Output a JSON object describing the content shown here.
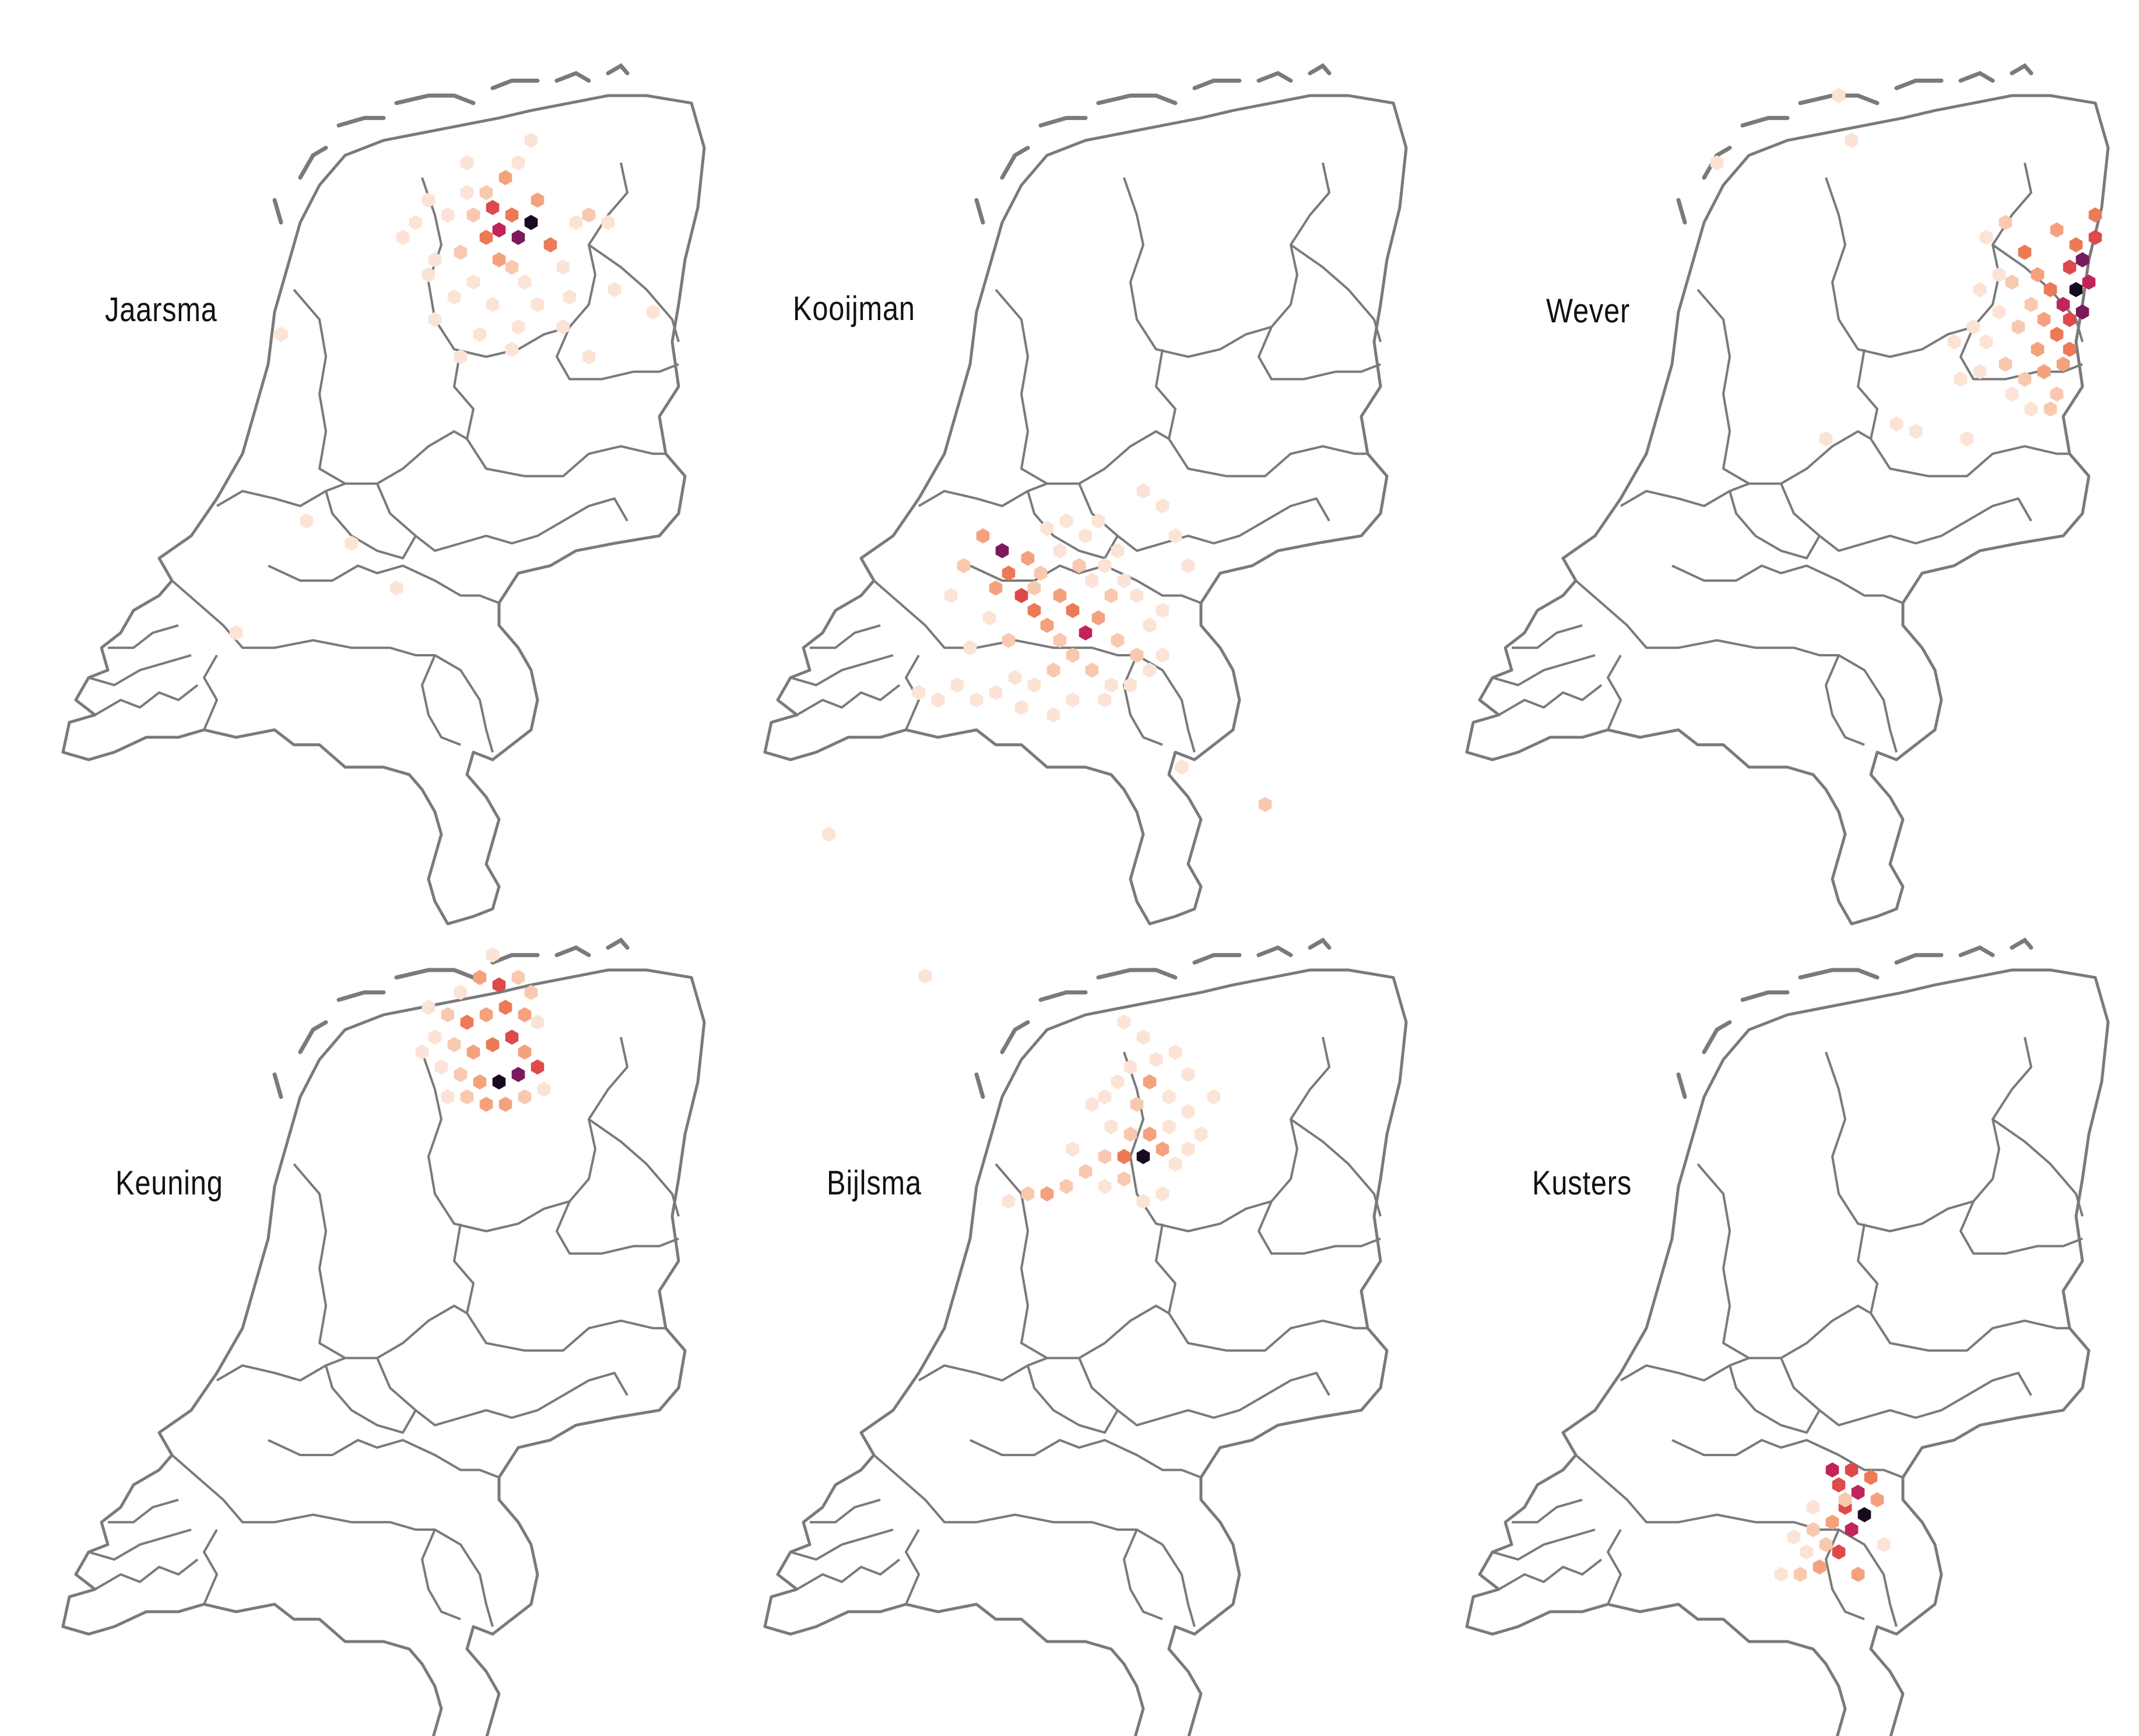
{
  "map": {
    "border_color": "#7a7a7a",
    "background": "#ffffff",
    "palette_low_to_high": [
      "#fbe3d6",
      "#f8c9ae",
      "#f4a27e",
      "#ec7a57",
      "#dd4a4c",
      "#c0245a",
      "#7a1a5c",
      "#190b1f"
    ]
  },
  "panels": [
    {
      "name": "Jaarsma",
      "cells": [
        [
          0.66,
          0.18,
          2
        ],
        [
          0.69,
          0.16,
          3
        ],
        [
          0.67,
          0.2,
          5
        ],
        [
          0.7,
          0.21,
          4
        ],
        [
          0.68,
          0.23,
          6
        ],
        [
          0.71,
          0.24,
          7
        ],
        [
          0.73,
          0.22,
          8
        ],
        [
          0.66,
          0.24,
          4
        ],
        [
          0.62,
          0.26,
          2
        ],
        [
          0.74,
          0.19,
          3
        ],
        [
          0.76,
          0.25,
          4
        ],
        [
          0.63,
          0.18,
          1
        ],
        [
          0.6,
          0.21,
          1
        ],
        [
          0.57,
          0.19,
          1
        ],
        [
          0.55,
          0.22,
          1
        ],
        [
          0.58,
          0.27,
          1
        ],
        [
          0.64,
          0.3,
          1
        ],
        [
          0.7,
          0.28,
          2
        ],
        [
          0.72,
          0.3,
          1
        ],
        [
          0.78,
          0.28,
          1
        ],
        [
          0.8,
          0.22,
          1
        ],
        [
          0.82,
          0.21,
          2
        ],
        [
          0.85,
          0.22,
          1
        ],
        [
          0.61,
          0.32,
          1
        ],
        [
          0.67,
          0.33,
          1
        ],
        [
          0.74,
          0.33,
          1
        ],
        [
          0.79,
          0.32,
          1
        ],
        [
          0.86,
          0.31,
          1
        ],
        [
          0.57,
          0.29,
          1
        ],
        [
          0.53,
          0.24,
          1
        ],
        [
          0.65,
          0.37,
          1
        ],
        [
          0.71,
          0.36,
          1
        ],
        [
          0.78,
          0.36,
          1
        ],
        [
          0.92,
          0.34,
          1
        ],
        [
          0.71,
          0.14,
          1
        ],
        [
          0.73,
          0.11,
          1
        ],
        [
          0.63,
          0.14,
          1
        ],
        [
          0.58,
          0.35,
          1
        ],
        [
          0.68,
          0.27,
          3
        ],
        [
          0.64,
          0.21,
          2
        ],
        [
          0.34,
          0.37,
          1
        ],
        [
          0.38,
          0.62,
          1
        ],
        [
          0.45,
          0.65,
          1
        ],
        [
          0.52,
          0.71,
          1
        ],
        [
          0.27,
          0.77,
          1
        ],
        [
          0.62,
          0.4,
          1
        ],
        [
          0.82,
          0.4,
          1
        ],
        [
          0.7,
          0.39,
          1
        ]
      ]
    },
    {
      "name": "Kooijman",
      "cells": [
        [
          0.34,
          0.64,
          3
        ],
        [
          0.37,
          0.66,
          7
        ],
        [
          0.38,
          0.69,
          4
        ],
        [
          0.36,
          0.71,
          3
        ],
        [
          0.4,
          0.72,
          5
        ],
        [
          0.42,
          0.74,
          4
        ],
        [
          0.44,
          0.76,
          3
        ],
        [
          0.41,
          0.67,
          3
        ],
        [
          0.43,
          0.69,
          2
        ],
        [
          0.46,
          0.72,
          3
        ],
        [
          0.48,
          0.74,
          4
        ],
        [
          0.5,
          0.77,
          6
        ],
        [
          0.52,
          0.75,
          3
        ],
        [
          0.54,
          0.72,
          2
        ],
        [
          0.46,
          0.66,
          1
        ],
        [
          0.49,
          0.68,
          2
        ],
        [
          0.51,
          0.7,
          1
        ],
        [
          0.53,
          0.68,
          1
        ],
        [
          0.55,
          0.66,
          1
        ],
        [
          0.5,
          0.64,
          1
        ],
        [
          0.47,
          0.62,
          1
        ],
        [
          0.52,
          0.62,
          1
        ],
        [
          0.56,
          0.7,
          1
        ],
        [
          0.58,
          0.72,
          1
        ],
        [
          0.55,
          0.78,
          2
        ],
        [
          0.58,
          0.8,
          2
        ],
        [
          0.6,
          0.76,
          1
        ],
        [
          0.62,
          0.74,
          1
        ],
        [
          0.48,
          0.8,
          2
        ],
        [
          0.45,
          0.82,
          2
        ],
        [
          0.42,
          0.84,
          1
        ],
        [
          0.39,
          0.83,
          1
        ],
        [
          0.36,
          0.85,
          1
        ],
        [
          0.33,
          0.86,
          1
        ],
        [
          0.3,
          0.84,
          1
        ],
        [
          0.27,
          0.86,
          1
        ],
        [
          0.24,
          0.85,
          1
        ],
        [
          0.51,
          0.82,
          2
        ],
        [
          0.54,
          0.84,
          1
        ],
        [
          0.57,
          0.84,
          1
        ],
        [
          0.6,
          0.82,
          1
        ],
        [
          0.31,
          0.68,
          2
        ],
        [
          0.29,
          0.72,
          1
        ],
        [
          0.35,
          0.75,
          1
        ],
        [
          0.38,
          0.78,
          2
        ],
        [
          0.32,
          0.79,
          1
        ],
        [
          0.4,
          0.87,
          1
        ],
        [
          0.45,
          0.88,
          1
        ],
        [
          0.48,
          0.86,
          1
        ],
        [
          0.64,
          0.64,
          1
        ],
        [
          0.66,
          0.68,
          1
        ],
        [
          0.62,
          0.6,
          1
        ],
        [
          0.59,
          0.58,
          1
        ],
        [
          0.42,
          0.71,
          2
        ],
        [
          0.46,
          0.78,
          2
        ],
        [
          0.53,
          0.86,
          1
        ],
        [
          0.62,
          0.8,
          1
        ],
        [
          0.78,
          1.0,
          2
        ],
        [
          0.1,
          1.04,
          1
        ],
        [
          0.25,
          1.23,
          1
        ],
        [
          0.65,
          0.95,
          1
        ],
        [
          0.44,
          0.63,
          1
        ]
      ]
    },
    {
      "name": "Wever",
      "cells": [
        [
          0.92,
          0.23,
          3
        ],
        [
          0.95,
          0.25,
          4
        ],
        [
          0.98,
          0.24,
          5
        ],
        [
          0.96,
          0.27,
          7
        ],
        [
          0.94,
          0.28,
          5
        ],
        [
          0.97,
          0.3,
          6
        ],
        [
          0.95,
          0.31,
          8
        ],
        [
          0.93,
          0.33,
          6
        ],
        [
          0.96,
          0.34,
          7
        ],
        [
          0.94,
          0.35,
          5
        ],
        [
          0.91,
          0.31,
          4
        ],
        [
          0.89,
          0.29,
          3
        ],
        [
          0.87,
          0.26,
          4
        ],
        [
          0.85,
          0.3,
          2
        ],
        [
          0.88,
          0.33,
          2
        ],
        [
          0.9,
          0.35,
          3
        ],
        [
          0.92,
          0.37,
          4
        ],
        [
          0.89,
          0.39,
          3
        ],
        [
          0.86,
          0.36,
          2
        ],
        [
          0.83,
          0.34,
          1
        ],
        [
          0.81,
          0.38,
          1
        ],
        [
          0.84,
          0.41,
          2
        ],
        [
          0.87,
          0.43,
          2
        ],
        [
          0.9,
          0.42,
          3
        ],
        [
          0.92,
          0.45,
          2
        ],
        [
          0.93,
          0.41,
          3
        ],
        [
          0.79,
          0.36,
          1
        ],
        [
          0.76,
          0.38,
          1
        ],
        [
          0.83,
          0.29,
          1
        ],
        [
          0.8,
          0.31,
          1
        ],
        [
          0.85,
          0.45,
          1
        ],
        [
          0.8,
          0.42,
          1
        ],
        [
          0.77,
          0.43,
          1
        ],
        [
          0.88,
          0.47,
          1
        ],
        [
          0.84,
          0.22,
          2
        ],
        [
          0.81,
          0.24,
          1
        ],
        [
          0.78,
          0.51,
          1
        ],
        [
          0.7,
          0.5,
          1
        ],
        [
          0.67,
          0.49,
          1
        ],
        [
          0.56,
          0.51,
          1
        ],
        [
          0.6,
          0.11,
          1
        ],
        [
          0.58,
          0.05,
          1
        ],
        [
          0.39,
          0.14,
          1
        ],
        [
          0.91,
          0.47,
          2
        ],
        [
          0.94,
          0.39,
          4
        ],
        [
          0.98,
          0.21,
          4
        ]
      ]
    },
    {
      "name": "Keuning",
      "cells": [
        [
          0.62,
          0.08,
          1
        ],
        [
          0.65,
          0.06,
          3
        ],
        [
          0.68,
          0.07,
          5
        ],
        [
          0.71,
          0.06,
          2
        ],
        [
          0.73,
          0.08,
          2
        ],
        [
          0.6,
          0.11,
          2
        ],
        [
          0.63,
          0.12,
          4
        ],
        [
          0.66,
          0.11,
          3
        ],
        [
          0.69,
          0.1,
          4
        ],
        [
          0.72,
          0.11,
          3
        ],
        [
          0.74,
          0.12,
          1
        ],
        [
          0.58,
          0.14,
          1
        ],
        [
          0.61,
          0.15,
          2
        ],
        [
          0.64,
          0.16,
          3
        ],
        [
          0.67,
          0.15,
          4
        ],
        [
          0.7,
          0.14,
          5
        ],
        [
          0.72,
          0.16,
          3
        ],
        [
          0.59,
          0.18,
          1
        ],
        [
          0.62,
          0.19,
          2
        ],
        [
          0.65,
          0.2,
          3
        ],
        [
          0.68,
          0.2,
          8
        ],
        [
          0.71,
          0.19,
          7
        ],
        [
          0.74,
          0.18,
          5
        ],
        [
          0.63,
          0.22,
          2
        ],
        [
          0.66,
          0.23,
          3
        ],
        [
          0.69,
          0.23,
          3
        ],
        [
          0.72,
          0.22,
          2
        ],
        [
          0.6,
          0.22,
          1
        ],
        [
          0.75,
          0.21,
          1
        ],
        [
          0.57,
          0.1,
          1
        ],
        [
          0.67,
          0.03,
          1
        ],
        [
          0.56,
          0.16,
          1
        ]
      ]
    },
    {
      "name": "Bijlsma",
      "cells": [
        [
          0.59,
          0.3,
          8
        ],
        [
          0.56,
          0.3,
          4
        ],
        [
          0.62,
          0.29,
          3
        ],
        [
          0.6,
          0.27,
          3
        ],
        [
          0.57,
          0.27,
          2
        ],
        [
          0.54,
          0.26,
          1
        ],
        [
          0.58,
          0.23,
          2
        ],
        [
          0.6,
          0.2,
          3
        ],
        [
          0.57,
          0.18,
          1
        ],
        [
          0.59,
          0.14,
          1
        ],
        [
          0.55,
          0.2,
          1
        ],
        [
          0.63,
          0.22,
          1
        ],
        [
          0.66,
          0.19,
          1
        ],
        [
          0.64,
          0.16,
          1
        ],
        [
          0.63,
          0.26,
          1
        ],
        [
          0.66,
          0.24,
          1
        ],
        [
          0.68,
          0.27,
          1
        ],
        [
          0.66,
          0.29,
          1
        ],
        [
          0.64,
          0.31,
          1
        ],
        [
          0.53,
          0.3,
          2
        ],
        [
          0.5,
          0.32,
          2
        ],
        [
          0.47,
          0.34,
          2
        ],
        [
          0.44,
          0.35,
          3
        ],
        [
          0.41,
          0.35,
          2
        ],
        [
          0.38,
          0.36,
          1
        ],
        [
          0.53,
          0.34,
          1
        ],
        [
          0.56,
          0.33,
          2
        ],
        [
          0.59,
          0.36,
          1
        ],
        [
          0.62,
          0.35,
          1
        ],
        [
          0.56,
          0.12,
          1
        ],
        [
          0.61,
          0.17,
          1
        ],
        [
          0.51,
          0.23,
          1
        ],
        [
          0.48,
          0.29,
          1
        ],
        [
          0.53,
          0.22,
          1
        ],
        [
          0.7,
          0.22,
          1
        ]
      ]
    },
    {
      "name": "Kusters",
      "cells": [
        [
          0.57,
          0.72,
          6
        ],
        [
          0.6,
          0.72,
          5
        ],
        [
          0.63,
          0.73,
          4
        ],
        [
          0.58,
          0.74,
          5
        ],
        [
          0.61,
          0.75,
          6
        ],
        [
          0.64,
          0.76,
          3
        ],
        [
          0.59,
          0.77,
          5
        ],
        [
          0.62,
          0.78,
          8
        ],
        [
          0.6,
          0.8,
          6
        ],
        [
          0.57,
          0.79,
          3
        ],
        [
          0.54,
          0.8,
          2
        ],
        [
          0.51,
          0.81,
          1
        ],
        [
          0.53,
          0.83,
          1
        ],
        [
          0.56,
          0.82,
          2
        ],
        [
          0.58,
          0.83,
          5
        ],
        [
          0.55,
          0.85,
          3
        ],
        [
          0.52,
          0.86,
          2
        ],
        [
          0.49,
          0.86,
          1
        ],
        [
          0.61,
          0.86,
          3
        ],
        [
          0.59,
          0.76,
          2
        ],
        [
          0.65,
          0.82,
          1
        ],
        [
          0.54,
          0.77,
          1
        ]
      ]
    }
  ]
}
